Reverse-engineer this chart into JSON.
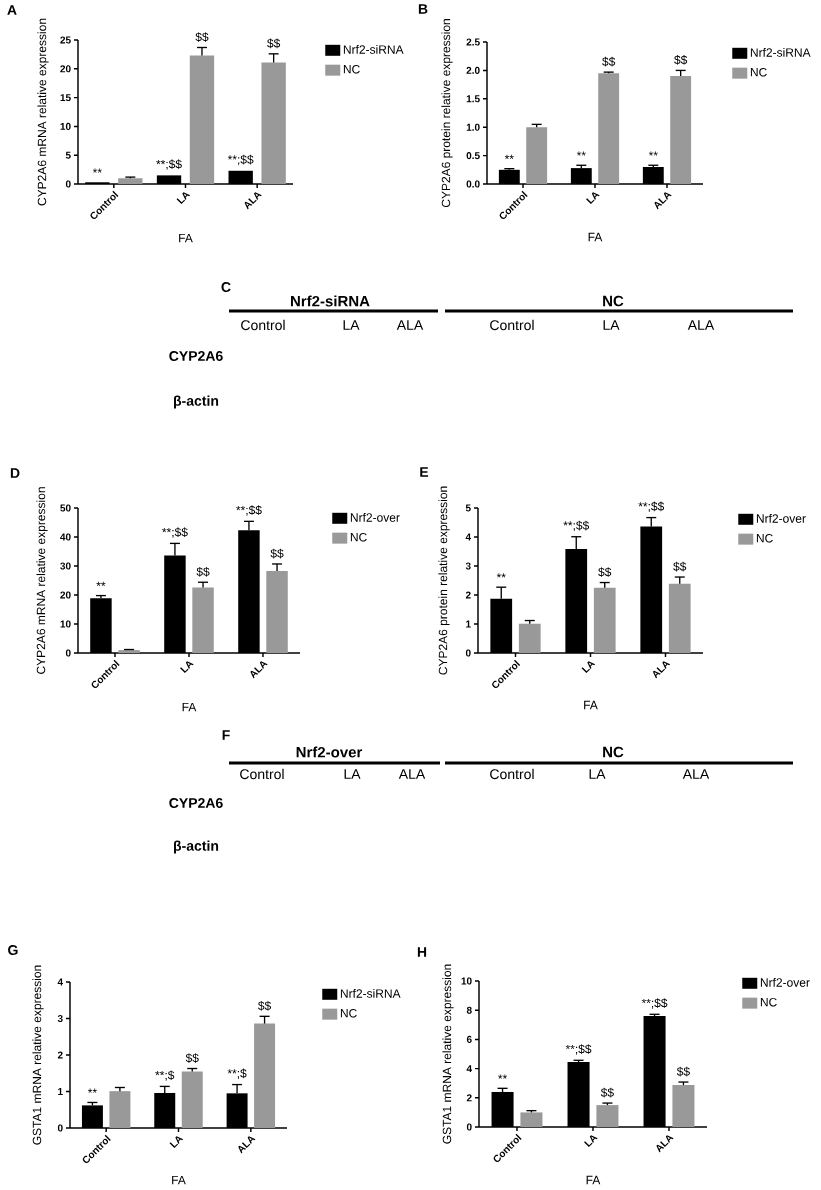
{
  "chart_data": [
    {
      "type": "bar",
      "title": "A",
      "xlabel": "FA",
      "ylabel": "CYP2A6 mRNA relative expression",
      "categories": [
        "Control",
        "LA",
        "ALA"
      ],
      "ylim": [
        0,
        25
      ],
      "yticks": [
        0,
        5,
        10,
        15,
        20,
        25
      ],
      "legend": "right",
      "series": [
        {
          "name": "Nrf2-siRNA",
          "color": "#000000",
          "values": [
            0.3,
            1.5,
            2.3
          ],
          "errors": [
            null,
            null,
            null
          ],
          "value_labels": [
            "**",
            "**;$$",
            "**;$$"
          ]
        },
        {
          "name": "NC",
          "color": "#999999",
          "values": [
            1.0,
            22.3,
            21.1
          ],
          "errors": [
            [
              1.0,
              1.2
            ],
            [
              22.3,
              23.7
            ],
            [
              21.1,
              22.6
            ]
          ],
          "value_labels": [
            null,
            "$$",
            "$$"
          ]
        }
      ]
    },
    {
      "type": "bar",
      "title": "B",
      "xlabel": "FA",
      "ylabel": "CYP2A6 protein relative expression",
      "categories": [
        "Control",
        "LA",
        "ALA"
      ],
      "ylim": [
        0,
        2.5
      ],
      "yticks": [
        {
          "value": 0,
          "label": "0.0"
        },
        0.5,
        {
          "value": 1,
          "label": "1.0"
        },
        1.5,
        {
          "value": 2,
          "label": "2.0"
        },
        2.5
      ],
      "legend": "right",
      "series": [
        {
          "name": "Nrf2-siRNA",
          "color": "#000000",
          "values": [
            0.25,
            0.28,
            0.3
          ],
          "errors": [
            [
              0.25,
              0.27
            ],
            [
              0.28,
              0.33
            ],
            [
              0.3,
              0.33
            ]
          ],
          "value_labels": [
            "**",
            "**",
            "**"
          ]
        },
        {
          "name": "NC",
          "color": "#999999",
          "values": [
            1.0,
            1.95,
            1.9
          ],
          "errors": [
            [
              1.0,
              1.05
            ],
            [
              1.95,
              1.97
            ],
            [
              1.9,
              2.0
            ]
          ],
          "value_labels": [
            null,
            "$$",
            "$$"
          ]
        }
      ]
    },
    {
      "type": "other",
      "title": "C",
      "annotations": [
        "Nrf2-siRNA",
        "NC",
        "Control",
        "LA",
        "ALA",
        "Control",
        "LA",
        "ALA",
        "CYP2A6",
        "β-actin"
      ]
    },
    {
      "type": "bar",
      "title": "D",
      "xlabel": "FA",
      "ylabel": "CYP2A6 mRNA relative expression",
      "categories": [
        "Control",
        "LA",
        "ALA"
      ],
      "ylim": [
        0,
        50
      ],
      "yticks": [
        0,
        10,
        20,
        30,
        40,
        50
      ],
      "legend": "right",
      "series": [
        {
          "name": "Nrf2-over",
          "color": "#000000",
          "values": [
            18.9,
            33.6,
            42.3
          ],
          "errors": [
            [
              18.9,
              19.8
            ],
            [
              33.6,
              37.8
            ],
            [
              42.3,
              45.4
            ]
          ],
          "value_labels": [
            "**",
            "**;$$",
            "**;$$"
          ]
        },
        {
          "name": "NC",
          "color": "#999999",
          "values": [
            1.0,
            22.6,
            28.3
          ],
          "errors": [
            [
              1.0,
              1.2
            ],
            [
              22.6,
              24.4
            ],
            [
              28.3,
              30.7
            ]
          ],
          "value_labels": [
            null,
            "$$",
            "$$"
          ]
        }
      ]
    },
    {
      "type": "bar",
      "title": "E",
      "xlabel": "FA",
      "ylabel": "CYP2A6 protein relative expression",
      "categories": [
        "Control",
        "LA",
        "ALA"
      ],
      "ylim": [
        0,
        5
      ],
      "yticks": [
        0,
        1,
        2,
        3,
        4,
        5
      ],
      "legend": "right",
      "series": [
        {
          "name": "Nrf2-over",
          "color": "#000000",
          "values": [
            1.87,
            3.59,
            4.36
          ],
          "errors": [
            [
              1.87,
              2.27
            ],
            [
              3.59,
              4.01
            ],
            [
              4.36,
              4.67
            ]
          ],
          "value_labels": [
            "**",
            "**;$$",
            "**;$$"
          ]
        },
        {
          "name": "NC",
          "color": "#999999",
          "values": [
            1.01,
            2.25,
            2.39
          ],
          "errors": [
            [
              1.01,
              1.12
            ],
            [
              2.25,
              2.43
            ],
            [
              2.39,
              2.62
            ]
          ],
          "value_labels": [
            null,
            "$$",
            "$$"
          ]
        }
      ]
    },
    {
      "type": "other",
      "title": "F",
      "annotations": [
        "Nrf2-over",
        "NC",
        "Control",
        "LA",
        "ALA",
        "Control",
        "LA",
        "ALA",
        "CYP2A6",
        "β-actin"
      ]
    },
    {
      "type": "bar",
      "title": "G",
      "xlabel": "FA",
      "ylabel": "GSTA1 mRNA relative expression",
      "categories": [
        "Control",
        "LA",
        "ALA"
      ],
      "ylim": [
        0,
        4
      ],
      "yticks": [
        0,
        1,
        2,
        3,
        4
      ],
      "legend": "right",
      "series": [
        {
          "name": "Nrf2-siRNA",
          "color": "#000000",
          "values": [
            0.62,
            0.96,
            0.95
          ],
          "errors": [
            [
              0.62,
              0.7
            ],
            [
              0.96,
              1.14
            ],
            [
              0.95,
              1.19
            ]
          ],
          "value_labels": [
            "**",
            "**;$",
            "**;$"
          ]
        },
        {
          "name": "NC",
          "color": "#999999",
          "values": [
            1.01,
            1.55,
            2.86
          ],
          "errors": [
            [
              1.01,
              1.11
            ],
            [
              1.55,
              1.63
            ],
            [
              2.86,
              3.06
            ]
          ],
          "value_labels": [
            null,
            "$$",
            "$$"
          ]
        }
      ]
    },
    {
      "type": "bar",
      "title": "H",
      "xlabel": "FA",
      "ylabel": "GSTA1 mRNA relative expression",
      "categories": [
        "Control",
        "LA",
        "ALA"
      ],
      "ylim": [
        0,
        10
      ],
      "yticks": [
        0,
        2,
        4,
        6,
        8,
        10
      ],
      "legend": "right",
      "series": [
        {
          "name": "Nrf2-over",
          "color": "#000000",
          "values": [
            2.4,
            4.45,
            7.6
          ],
          "errors": [
            [
              2.4,
              2.65
            ],
            [
              4.45,
              4.57
            ],
            [
              7.6,
              7.72
            ]
          ],
          "value_labels": [
            "**",
            "**;$$",
            "**;$$"
          ]
        },
        {
          "name": "NC",
          "color": "#999999",
          "values": [
            1.0,
            1.5,
            2.87
          ],
          "errors": [
            [
              1.0,
              1.12
            ],
            [
              1.5,
              1.64
            ],
            [
              2.87,
              3.08
            ]
          ],
          "value_labels": [
            null,
            "$$",
            "$$"
          ]
        }
      ]
    }
  ]
}
